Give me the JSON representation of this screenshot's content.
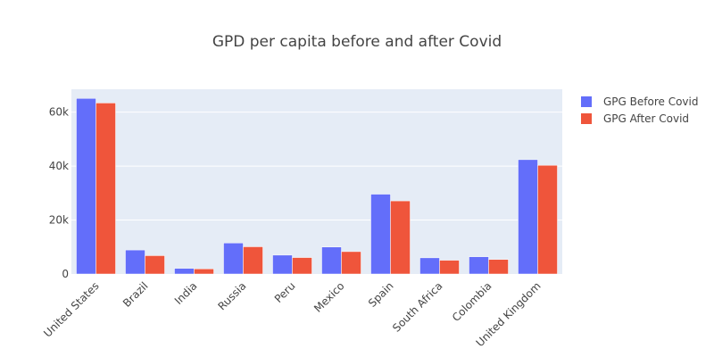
{
  "chart_data": {
    "type": "bar",
    "title": "GPD per capita before and after Covid",
    "xlabel": "",
    "ylabel": "",
    "categories": [
      "United States",
      "Brazil",
      "India",
      "Russia",
      "Peru",
      "Mexico",
      "Spain",
      "South Africa",
      "Colombia",
      "United Kingdom"
    ],
    "series": [
      {
        "name": "GPG Before Covid",
        "color": "#636efa",
        "values": [
          65100,
          8900,
          2100,
          11500,
          7000,
          10000,
          29600,
          6000,
          6400,
          42400
        ]
      },
      {
        "name": "GPG After Covid",
        "color": "#ef553b",
        "values": [
          63400,
          6800,
          1900,
          10100,
          6100,
          8300,
          27100,
          5100,
          5400,
          40300
        ]
      }
    ],
    "ylim": [
      0,
      68500
    ],
    "yticks": [
      0,
      20000,
      40000,
      60000
    ],
    "ytick_labels": [
      "0",
      "20k",
      "40k",
      "60k"
    ],
    "grid": true,
    "legend_position": "top-right",
    "plot_bg": "#e5ecf6"
  }
}
